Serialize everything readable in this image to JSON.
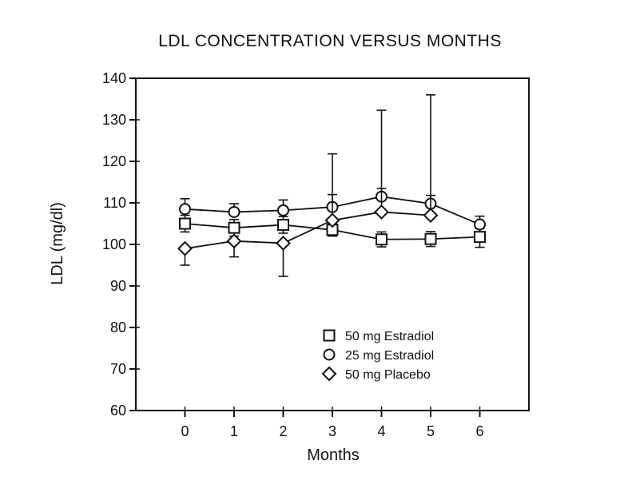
{
  "chart_data": {
    "type": "line",
    "title": "LDL CONCENTRATION VERSUS MONTHS",
    "xlabel": "Months",
    "ylabel": "LDL (mg/dl)",
    "xlim": [
      -1,
      7
    ],
    "ylim": [
      60,
      140
    ],
    "x_ticks": [
      0,
      1,
      2,
      3,
      4,
      5,
      6
    ],
    "y_ticks": [
      60,
      70,
      80,
      90,
      100,
      110,
      120,
      130,
      140
    ],
    "grid": false,
    "legend_position": "bottom-right",
    "series": [
      {
        "name": "50 mg Estradiol",
        "marker": "square",
        "x": [
          0,
          1,
          2,
          3,
          4,
          5,
          6
        ],
        "values": [
          105,
          104,
          104.7,
          103.5,
          101.2,
          101.3,
          101.8
        ],
        "error_up": [
          2,
          2,
          2,
          1.5,
          1.8,
          1.8,
          2
        ],
        "error_down": [
          2,
          2,
          2,
          1.5,
          1.8,
          1.8,
          2.5
        ]
      },
      {
        "name": "25 mg Estradiol",
        "marker": "circle",
        "x": [
          0,
          1,
          2,
          3,
          4,
          5,
          6
        ],
        "values": [
          108.5,
          107.8,
          108.2,
          109,
          111.5,
          109.8,
          104.8
        ],
        "error_up": [
          2.5,
          2,
          2.5,
          3,
          2,
          2,
          2
        ],
        "error_down": [
          0,
          0,
          0,
          0,
          0,
          0,
          0
        ]
      },
      {
        "name": "50 mg Placebo",
        "marker": "diamond",
        "x": [
          0,
          1,
          2,
          3,
          4,
          5
        ],
        "values": [
          99,
          100.8,
          100.3,
          105.8,
          107.8,
          107
        ],
        "error_up": [
          0,
          0,
          0,
          16,
          24.5,
          29
        ],
        "error_down": [
          4,
          3.8,
          8,
          0,
          0,
          0
        ]
      }
    ]
  }
}
